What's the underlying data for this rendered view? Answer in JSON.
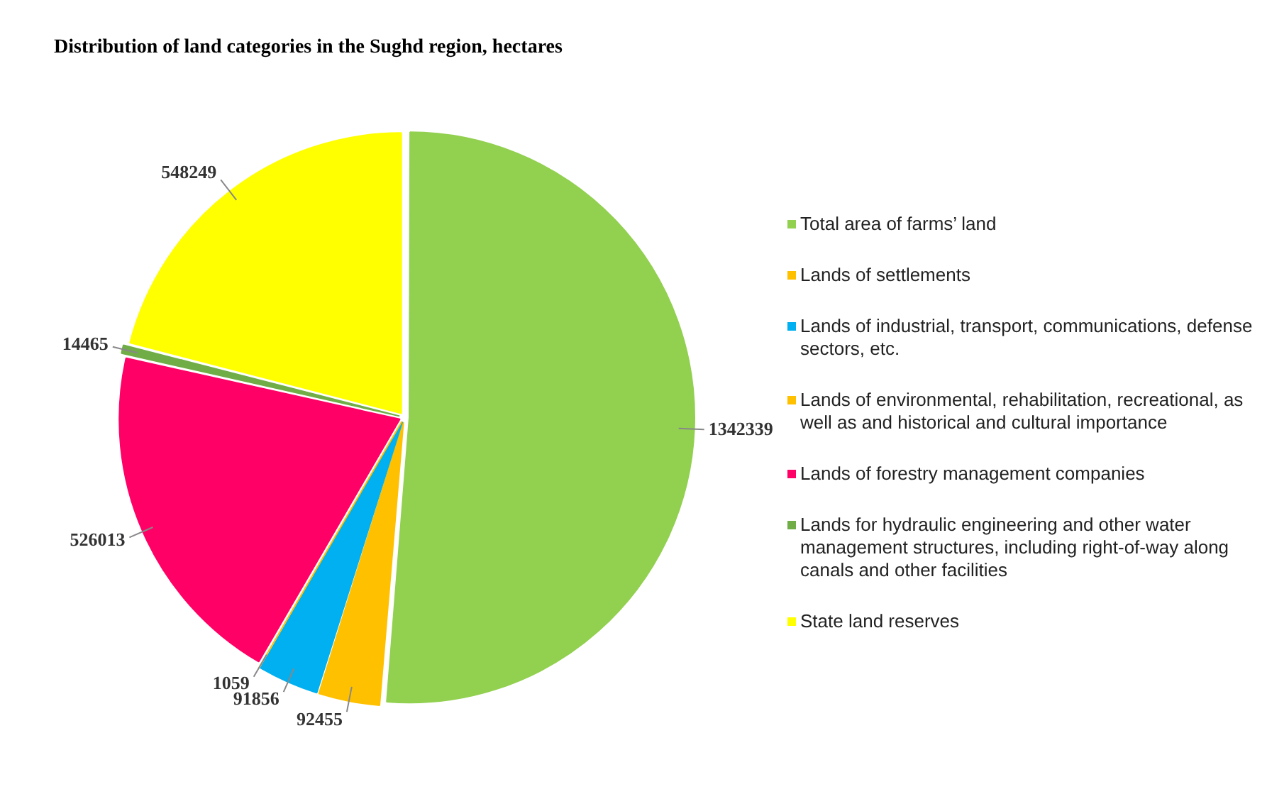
{
  "chart_data": {
    "type": "pie",
    "title": "Distribution of land categories in the Sughd region, hectares",
    "categories": [
      "Total area of farms’ land",
      "Lands of settlements",
      "Lands of industrial, transport, communications, defense sectors, etc.",
      "Lands of environmental, rehabilitation, recreational, as well as and historical and cultural importance",
      "Lands of forestry management companies",
      "Lands for hydraulic engineering and other water management structures, including right-of-way along canals and other facilities",
      "State land reserves"
    ],
    "values": [
      1342339,
      92455,
      91856,
      1059,
      526013,
      14465,
      548249
    ],
    "colors": [
      "#92d050",
      "#ffc000",
      "#00b0f0",
      "#ffc000",
      "#ff0066",
      "#70ad47",
      "#ffff00"
    ],
    "data_labels": true,
    "legend": "right"
  }
}
